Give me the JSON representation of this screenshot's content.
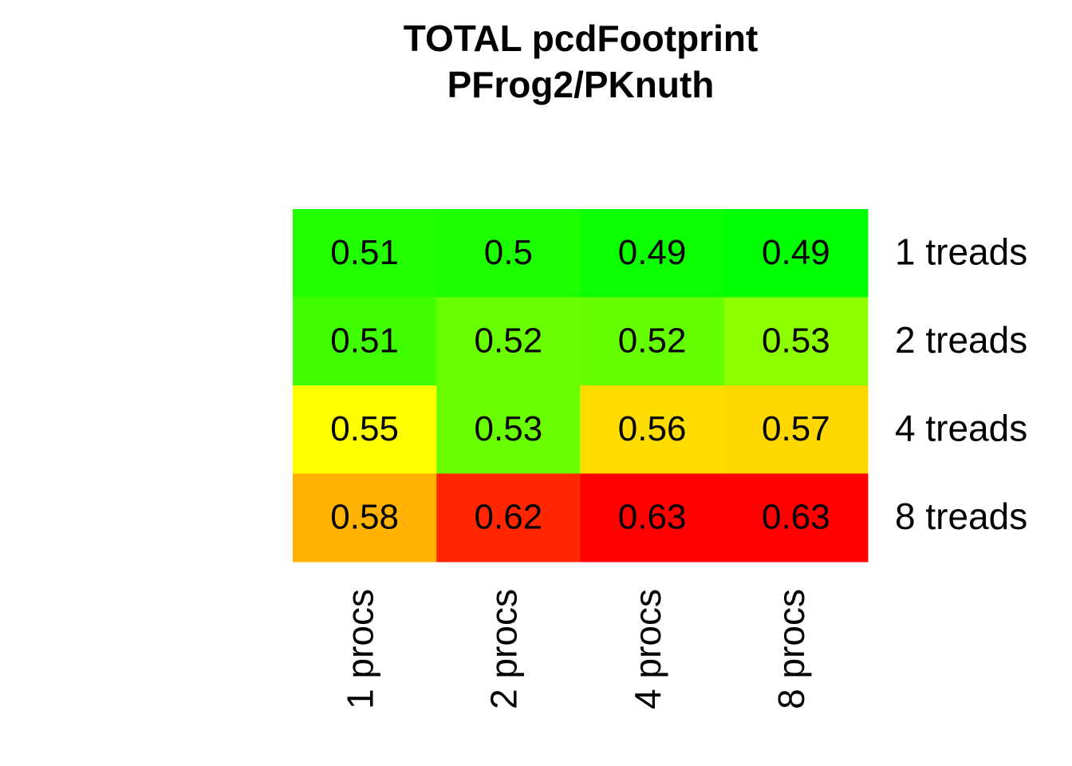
{
  "chart_data": {
    "type": "heatmap",
    "title": "TOTAL  pcdFootprint",
    "subtitle": "PFrog2/PKnuth",
    "x_categories": [
      "1 procs",
      "2 procs",
      "4 procs",
      "8 procs"
    ],
    "y_categories": [
      "1 treads",
      "2 treads",
      "4 treads",
      "8 treads"
    ],
    "values": [
      [
        0.51,
        0.5,
        0.49,
        0.49
      ],
      [
        0.51,
        0.52,
        0.52,
        0.53
      ],
      [
        0.55,
        0.53,
        0.56,
        0.57
      ],
      [
        0.58,
        0.62,
        0.63,
        0.63
      ]
    ],
    "colors": [
      [
        "#22ff00",
        "#1cff00",
        "#0cff00",
        "#00ff00"
      ],
      [
        "#40ff00",
        "#6aff00",
        "#66ff00",
        "#8cff00"
      ],
      [
        "#ffff00",
        "#6aff00",
        "#ffdc00",
        "#ffd800"
      ],
      [
        "#ffb300",
        "#ff2600",
        "#ff0000",
        "#ff0000"
      ]
    ]
  }
}
